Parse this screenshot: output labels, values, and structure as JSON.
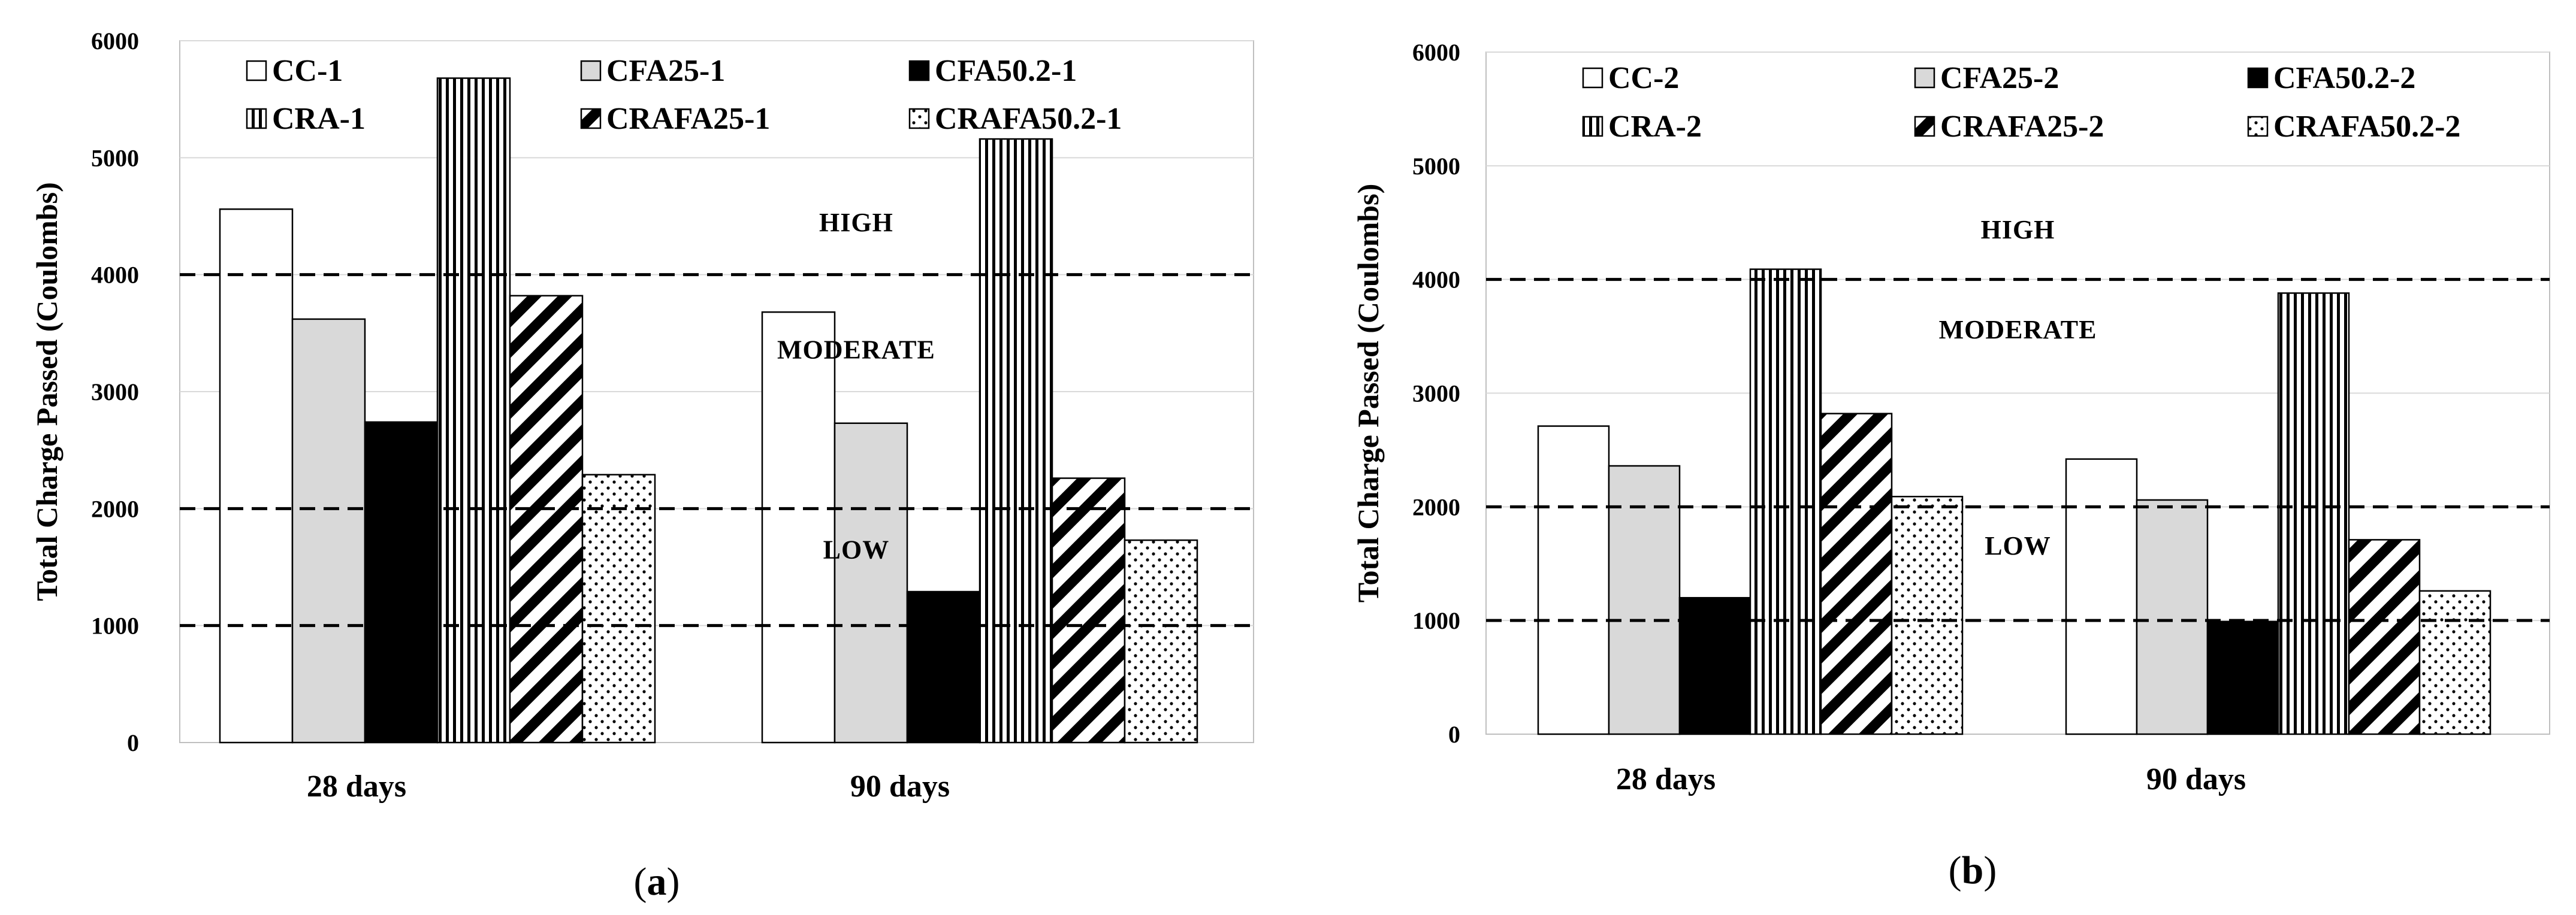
{
  "chart_data": [
    {
      "type": "bar",
      "panel_label": "(a)",
      "panel_letter": "a",
      "ylabel": "Total Charge Passed (Coulombs)",
      "xlabel": "",
      "ylim": [
        0,
        6000
      ],
      "yticks": [
        0,
        1000,
        2000,
        3000,
        4000,
        5000,
        6000
      ],
      "ytick_labels": [
        "0",
        "1000",
        "2000",
        "3000",
        "4000",
        "5000",
        "6000"
      ],
      "grid": true,
      "categories": [
        "28 days",
        "90 days"
      ],
      "series": [
        {
          "name": "CC-1",
          "pattern": "white",
          "values": [
            4560,
            3680
          ]
        },
        {
          "name": "CFA25-1",
          "pattern": "gray",
          "values": [
            3620,
            2730
          ]
        },
        {
          "name": "CFA50.2-1",
          "pattern": "black",
          "values": [
            2740,
            1290
          ]
        },
        {
          "name": "CRA-1",
          "pattern": "vertical",
          "values": [
            5680,
            5160
          ]
        },
        {
          "name": "CRAFA25-1",
          "pattern": "diagonal",
          "values": [
            3820,
            2260
          ]
        },
        {
          "name": "CRAFA50.2-1",
          "pattern": "dots",
          "values": [
            2290,
            1730
          ]
        }
      ],
      "thresholds": [
        1000,
        2000,
        4000
      ],
      "zones": [
        {
          "label": "HIGH",
          "y": 4450,
          "x_frac": 0.63
        },
        {
          "label": "MODERATE",
          "y": 3360,
          "x_frac": 0.63
        },
        {
          "label": "LOW",
          "y": 1650,
          "x_frac": 0.63
        }
      ],
      "legend_position": "top"
    },
    {
      "type": "bar",
      "panel_label": "(b)",
      "panel_letter": "b",
      "ylabel": "Total Charge Passed (Coulombs)",
      "xlabel": "",
      "ylim": [
        0,
        6000
      ],
      "yticks": [
        0,
        1000,
        2000,
        3000,
        4000,
        5000,
        6000
      ],
      "ytick_labels": [
        "0",
        "1000",
        "2000",
        "3000",
        "4000",
        "5000",
        "6000"
      ],
      "grid": true,
      "categories": [
        "28 days",
        "90 days"
      ],
      "series": [
        {
          "name": "CC-2",
          "pattern": "white",
          "values": [
            2710,
            2420
          ]
        },
        {
          "name": "CFA25-2",
          "pattern": "gray",
          "values": [
            2360,
            2060
          ]
        },
        {
          "name": "CFA50.2-2",
          "pattern": "black",
          "values": [
            1200,
            990
          ]
        },
        {
          "name": "CRA-2",
          "pattern": "vertical",
          "values": [
            4090,
            3880
          ]
        },
        {
          "name": "CRAFA25-2",
          "pattern": "diagonal",
          "values": [
            2820,
            1710
          ]
        },
        {
          "name": "CRAFA50.2-2",
          "pattern": "dots",
          "values": [
            2090,
            1260
          ]
        }
      ],
      "thresholds": [
        1000,
        2000,
        4000
      ],
      "zones": [
        {
          "label": "HIGH",
          "y": 4440,
          "x_frac": 0.5
        },
        {
          "label": "MODERATE",
          "y": 3560,
          "x_frac": 0.5
        },
        {
          "label": "LOW",
          "y": 1660,
          "x_frac": 0.5
        }
      ],
      "legend_position": "top"
    }
  ]
}
